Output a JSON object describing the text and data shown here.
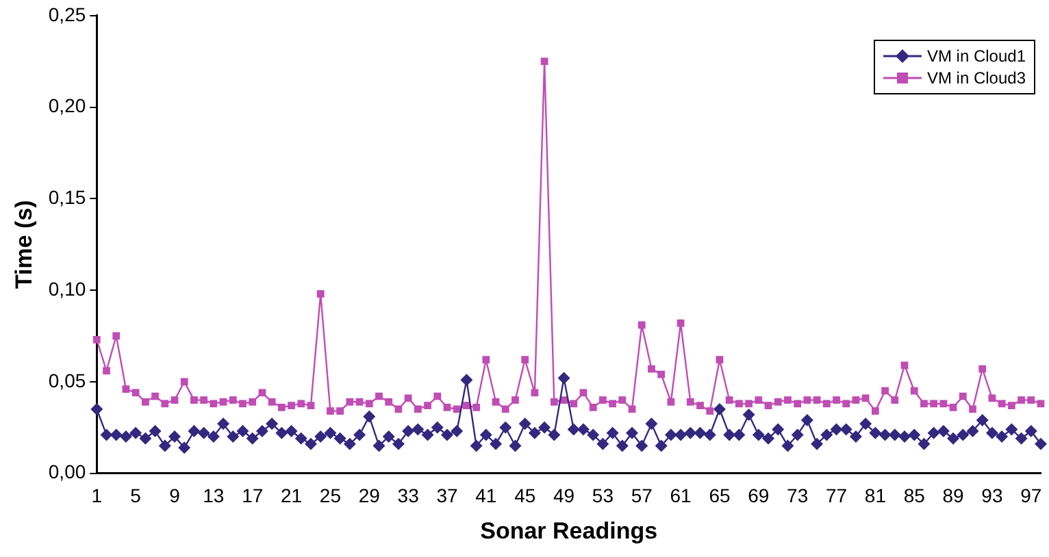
{
  "chart_data": {
    "type": "line",
    "xlabel": "Sonar Readings",
    "ylabel": "Time (s)",
    "categories": [
      "1",
      null,
      null,
      null,
      "5",
      null,
      null,
      null,
      "9",
      null,
      null,
      null,
      "13",
      null,
      null,
      null,
      "17",
      null,
      null,
      null,
      "21",
      null,
      null,
      null,
      "25",
      null,
      null,
      null,
      "29",
      null,
      null,
      null,
      "33",
      null,
      null,
      null,
      "37",
      null,
      null,
      null,
      "41",
      null,
      null,
      null,
      "45",
      null,
      null,
      null,
      "49",
      null,
      null,
      null,
      "53",
      null,
      null,
      null,
      "57",
      null,
      null,
      null,
      "61",
      null,
      null,
      null,
      "65",
      null,
      null,
      null,
      "69",
      null,
      null,
      null,
      "73",
      null,
      null,
      null,
      "77",
      null,
      null,
      null,
      "81",
      null,
      null,
      null,
      "85",
      null,
      null,
      null,
      "89",
      null,
      null,
      null,
      "93",
      null,
      null,
      null,
      "97",
      null
    ],
    "series": [
      {
        "name": "VM in Cloud1",
        "color": "#33287f",
        "marker": "diamond",
        "values": [
          0.035,
          0.021,
          0.021,
          0.02,
          0.022,
          0.019,
          0.023,
          0.015,
          0.02,
          0.014,
          0.023,
          0.022,
          0.02,
          0.027,
          0.02,
          0.023,
          0.019,
          0.023,
          0.027,
          0.022,
          0.023,
          0.019,
          0.016,
          0.02,
          0.022,
          0.019,
          0.016,
          0.021,
          0.031,
          0.015,
          0.02,
          0.016,
          0.023,
          0.024,
          0.021,
          0.025,
          0.021,
          0.023,
          0.051,
          0.015,
          0.021,
          0.016,
          0.025,
          0.015,
          0.027,
          0.022,
          0.025,
          0.021,
          0.052,
          0.024,
          0.024,
          0.021,
          0.016,
          0.022,
          0.015,
          0.022,
          0.015,
          0.027,
          0.015,
          0.021,
          0.021,
          0.022,
          0.022,
          0.021,
          0.035,
          0.021,
          0.021,
          0.032,
          0.021,
          0.019,
          0.024,
          0.015,
          0.021,
          0.029,
          0.016,
          0.021,
          0.024,
          0.024,
          0.02,
          0.027,
          0.022,
          0.021,
          0.021,
          0.02,
          0.021,
          0.016,
          0.022,
          0.023,
          0.019,
          0.021,
          0.023,
          0.029,
          0.022,
          0.02,
          0.024,
          0.019,
          0.023,
          0.016
        ]
      },
      {
        "name": "VM in Cloud3",
        "color": "#c04cb4",
        "marker": "square",
        "values": [
          0.073,
          0.056,
          0.075,
          0.046,
          0.044,
          0.039,
          0.042,
          0.038,
          0.04,
          0.05,
          0.04,
          0.04,
          0.038,
          0.039,
          0.04,
          0.038,
          0.039,
          0.044,
          0.039,
          0.036,
          0.037,
          0.038,
          0.037,
          0.098,
          0.034,
          0.034,
          0.039,
          0.039,
          0.038,
          0.042,
          0.039,
          0.035,
          0.041,
          0.035,
          0.037,
          0.042,
          0.036,
          0.035,
          0.037,
          0.036,
          0.062,
          0.039,
          0.035,
          0.04,
          0.062,
          0.044,
          0.225,
          0.039,
          0.04,
          0.038,
          0.044,
          0.036,
          0.04,
          0.038,
          0.04,
          0.035,
          0.081,
          0.057,
          0.054,
          0.039,
          0.082,
          0.039,
          0.037,
          0.034,
          0.062,
          0.04,
          0.038,
          0.038,
          0.04,
          0.037,
          0.039,
          0.04,
          0.038,
          0.04,
          0.04,
          0.038,
          0.04,
          0.038,
          0.04,
          0.041,
          0.034,
          0.045,
          0.04,
          0.059,
          0.045,
          0.038,
          0.038,
          0.038,
          0.036,
          0.042,
          0.035,
          0.057,
          0.041,
          0.038,
          0.037,
          0.04,
          0.04,
          0.038
        ]
      }
    ],
    "ylim": [
      0,
      0.25
    ],
    "yticks": [
      {
        "value": 0,
        "label": "0,00"
      },
      {
        "value": 0.05,
        "label": "0,05"
      },
      {
        "value": 0.1,
        "label": "0,10"
      },
      {
        "value": 0.15,
        "label": "0,15"
      },
      {
        "value": 0.2,
        "label": "0,20"
      },
      {
        "value": 0.25,
        "label": "0,25"
      }
    ],
    "grid": false,
    "legend": "top right"
  }
}
